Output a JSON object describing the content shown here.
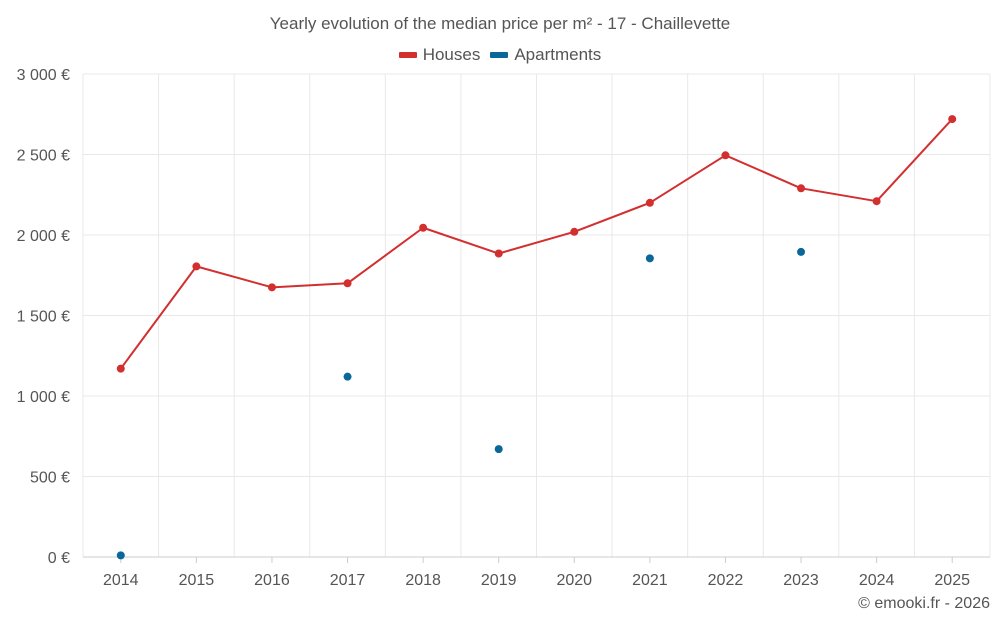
{
  "chart_data": {
    "type": "line",
    "title": "Yearly evolution of the median price per m² - 17 - Chaillevette",
    "categories": [
      "2014",
      "2015",
      "2016",
      "2017",
      "2018",
      "2019",
      "2020",
      "2021",
      "2022",
      "2023",
      "2024",
      "2025"
    ],
    "ylim": [
      0,
      3000
    ],
    "yticks": [
      0,
      500,
      1000,
      1500,
      2000,
      2500,
      3000
    ],
    "ytick_labels": [
      "0 €",
      "500 €",
      "1 000 €",
      "1 500 €",
      "2 000 €",
      "2 500 €",
      "3 000 €"
    ],
    "grid": true,
    "legend_position": "top-center",
    "series": [
      {
        "name": "Houses",
        "color": "#d32f2f",
        "style": "line-with-markers",
        "values": [
          1170,
          1805,
          1675,
          1700,
          2045,
          1885,
          2020,
          2200,
          2495,
          2290,
          2210,
          2720
        ]
      },
      {
        "name": "Apartments",
        "color": "#0a6799",
        "style": "markers-only",
        "values": [
          10,
          null,
          null,
          1120,
          null,
          670,
          null,
          1855,
          null,
          1895,
          null,
          null
        ]
      }
    ]
  },
  "credit": "© emooki.fr - 2026"
}
